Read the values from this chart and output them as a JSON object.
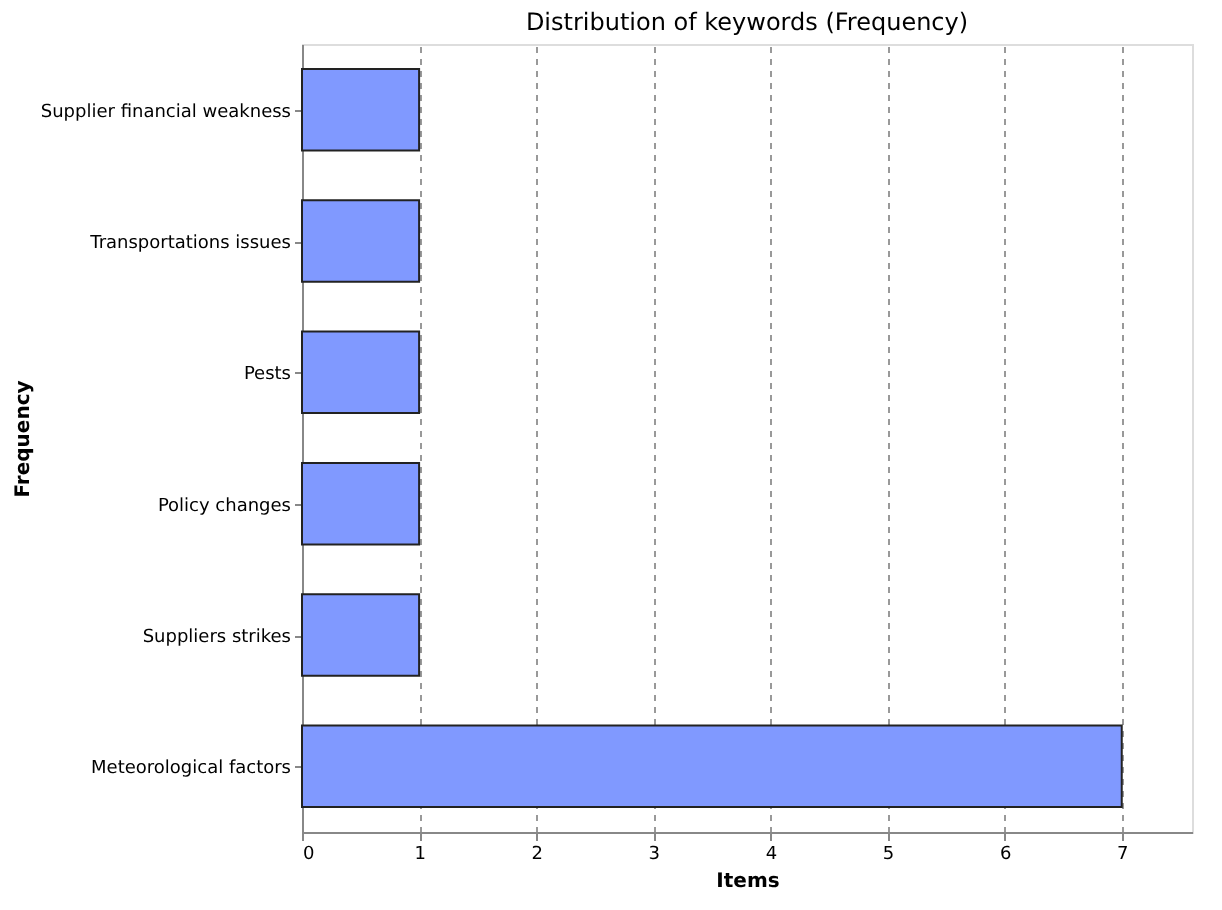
{
  "chart_data": {
    "type": "bar",
    "orientation": "horizontal",
    "title": "Distribution of keywords (Frequency)",
    "xlabel": "Items",
    "ylabel": "Frequency",
    "categories": [
      "Supplier financial weakness",
      "Transportations issues",
      "Pests",
      "Policy changes",
      "Suppliers strikes",
      "Meteorological factors"
    ],
    "values": [
      1,
      1,
      1,
      1,
      1,
      7
    ],
    "color": "#8099ff",
    "xlim": [
      0,
      7.6
    ],
    "xticks": [
      0,
      1,
      2,
      3,
      4,
      5,
      6,
      7
    ],
    "grid": "x"
  }
}
